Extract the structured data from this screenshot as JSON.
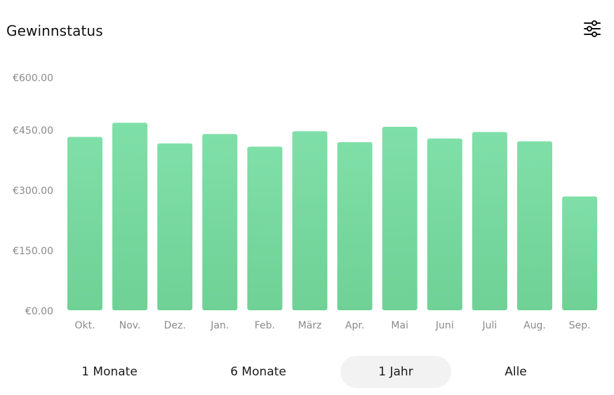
{
  "header": {
    "title": "Gewinnstatus",
    "filter_icon": "sliders-icon"
  },
  "colors": {
    "bar_top": "#7fdfa8",
    "bar_bottom": "#6fd196",
    "tick_text": "#8a8a8a",
    "active_range_bg": "#f2f2f2"
  },
  "chart_data": {
    "type": "bar",
    "title": "Gewinnstatus",
    "categories": [
      "Okt.",
      "Nov.",
      "Dez.",
      "Jan.",
      "Feb.",
      "März",
      "Apr.",
      "Mai",
      "Juni",
      "Juli",
      "Aug.",
      "Sep."
    ],
    "series": [
      {
        "values": [
          428,
          463,
          412,
          435,
          404,
          442,
          415,
          453,
          424,
          440,
          417,
          281
        ]
      }
    ],
    "y_ticks": [
      {
        "value": 0,
        "label": "€0.00"
      },
      {
        "value": 150,
        "label": "€150.00"
      },
      {
        "value": 300,
        "label": "€300.00"
      },
      {
        "value": 450,
        "label": "€450.00"
      },
      {
        "value": 600,
        "label": "€600.00"
      }
    ],
    "ylim": [
      0,
      600
    ],
    "grid": false,
    "legend": "none"
  },
  "range_selector": {
    "options": [
      {
        "label": "1 Monate",
        "active": false
      },
      {
        "label": "6 Monate",
        "active": false
      },
      {
        "label": "1 Jahr",
        "active": true
      },
      {
        "label": "Alle",
        "active": false
      }
    ]
  }
}
